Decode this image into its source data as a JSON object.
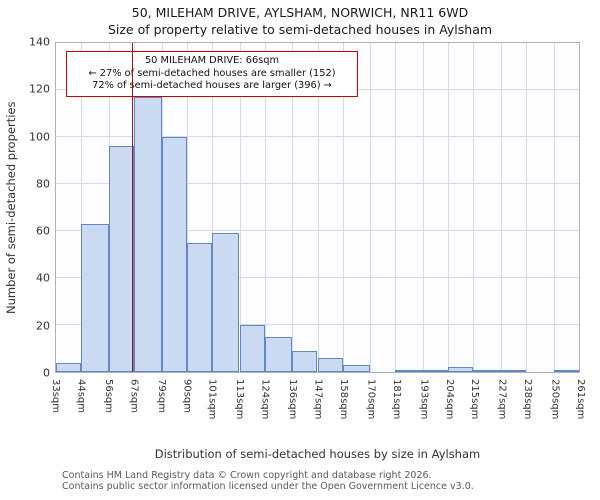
{
  "title": "50, MILEHAM DRIVE, AYLSHAM, NORWICH, NR11 6WD",
  "subtitle": "Size of property relative to semi-detached houses in Aylsham",
  "annotation": {
    "line1": "50 MILEHAM DRIVE: 66sqm",
    "line2": "← 27% of semi-detached houses are smaller (152)",
    "line3": "72% of semi-detached houses are larger (396) →"
  },
  "footer": {
    "line1": "Contains HM Land Registry data © Crown copyright and database right 2026.",
    "line2": "Contains public sector information licensed under the Open Government Licence v3.0."
  },
  "chart_data": {
    "type": "bar",
    "title": "50, MILEHAM DRIVE, AYLSHAM, NORWICH, NR11 6WD",
    "subtitle": "Size of property relative to semi-detached houses in Aylsham",
    "xlabel": "Distribution of semi-detached houses by size in Aylsham",
    "ylabel": "Number of semi-detached properties",
    "ylim": [
      0,
      140
    ],
    "yticks": [
      0,
      20,
      40,
      60,
      80,
      100,
      120,
      140
    ],
    "bin_edges_sqm": [
      33,
      44,
      56,
      67,
      79,
      90,
      101,
      113,
      124,
      136,
      147,
      158,
      170,
      181,
      193,
      204,
      215,
      227,
      238,
      250,
      261
    ],
    "tick_labels": [
      "33sqm",
      "44sqm",
      "56sqm",
      "67sqm",
      "79sqm",
      "90sqm",
      "101sqm",
      "113sqm",
      "124sqm",
      "136sqm",
      "147sqm",
      "158sqm",
      "170sqm",
      "181sqm",
      "193sqm",
      "204sqm",
      "215sqm",
      "227sqm",
      "238sqm",
      "250sqm",
      "261sqm"
    ],
    "values": [
      4,
      63,
      96,
      117,
      100,
      55,
      59,
      20,
      15,
      9,
      6,
      3,
      0,
      1,
      1,
      2,
      1,
      1,
      0,
      1
    ],
    "marker_value_sqm": 66,
    "grid": true,
    "legend": "none",
    "colors": {
      "bar_fill": "#ccdaf1",
      "bar_border": "#6187c5",
      "grid": "#d3dcec",
      "axis_border": "#aab2c0",
      "marker_line": "#a01414",
      "annotation_border": "#cc0000"
    }
  }
}
